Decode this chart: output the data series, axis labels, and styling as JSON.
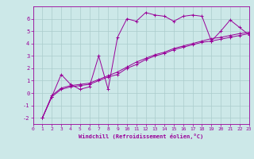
{
  "xlabel": "Windchill (Refroidissement éolien,°C)",
  "bg_color": "#cce8e8",
  "line_color": "#990099",
  "grid_color": "#aacccc",
  "xlim": [
    0,
    23
  ],
  "ylim": [
    -2.5,
    7.0
  ],
  "xticks": [
    0,
    1,
    2,
    3,
    4,
    5,
    6,
    7,
    8,
    9,
    10,
    11,
    12,
    13,
    14,
    15,
    16,
    17,
    18,
    19,
    20,
    21,
    22,
    23
  ],
  "yticks": [
    -2,
    -1,
    0,
    1,
    2,
    3,
    4,
    5,
    6
  ],
  "series1_x": [
    1,
    2,
    3,
    4,
    5,
    6,
    7,
    8,
    9,
    10,
    11,
    12,
    13,
    14,
    15,
    16,
    17,
    18,
    19,
    20,
    21,
    22,
    23
  ],
  "series1_y": [
    -2.0,
    -0.3,
    1.5,
    0.7,
    0.3,
    0.5,
    3.0,
    0.3,
    4.5,
    6.0,
    5.8,
    6.5,
    6.3,
    6.2,
    5.8,
    6.2,
    6.3,
    6.2,
    4.2,
    5.0,
    5.9,
    5.3,
    4.7
  ],
  "series2_x": [
    1,
    2,
    3,
    4,
    5,
    6,
    7,
    8,
    9,
    10,
    11,
    12,
    13,
    14,
    15,
    16,
    17,
    18,
    19,
    20,
    21,
    22,
    23
  ],
  "series2_y": [
    -2.0,
    -0.3,
    0.3,
    0.5,
    0.6,
    0.7,
    1.0,
    1.3,
    1.5,
    2.0,
    2.3,
    2.7,
    3.0,
    3.2,
    3.5,
    3.7,
    3.9,
    4.1,
    4.2,
    4.35,
    4.5,
    4.65,
    4.8
  ],
  "series3_x": [
    1,
    2,
    3,
    4,
    5,
    6,
    7,
    8,
    9,
    10,
    11,
    12,
    13,
    14,
    15,
    16,
    17,
    18,
    19,
    20,
    21,
    22,
    23
  ],
  "series3_y": [
    -2.0,
    -0.2,
    0.4,
    0.6,
    0.7,
    0.8,
    1.1,
    1.4,
    1.7,
    2.1,
    2.5,
    2.8,
    3.1,
    3.3,
    3.6,
    3.8,
    4.0,
    4.2,
    4.4,
    4.5,
    4.65,
    4.8,
    4.9
  ],
  "tick_fontsize": 4.5,
  "xlabel_fontsize": 5.0
}
